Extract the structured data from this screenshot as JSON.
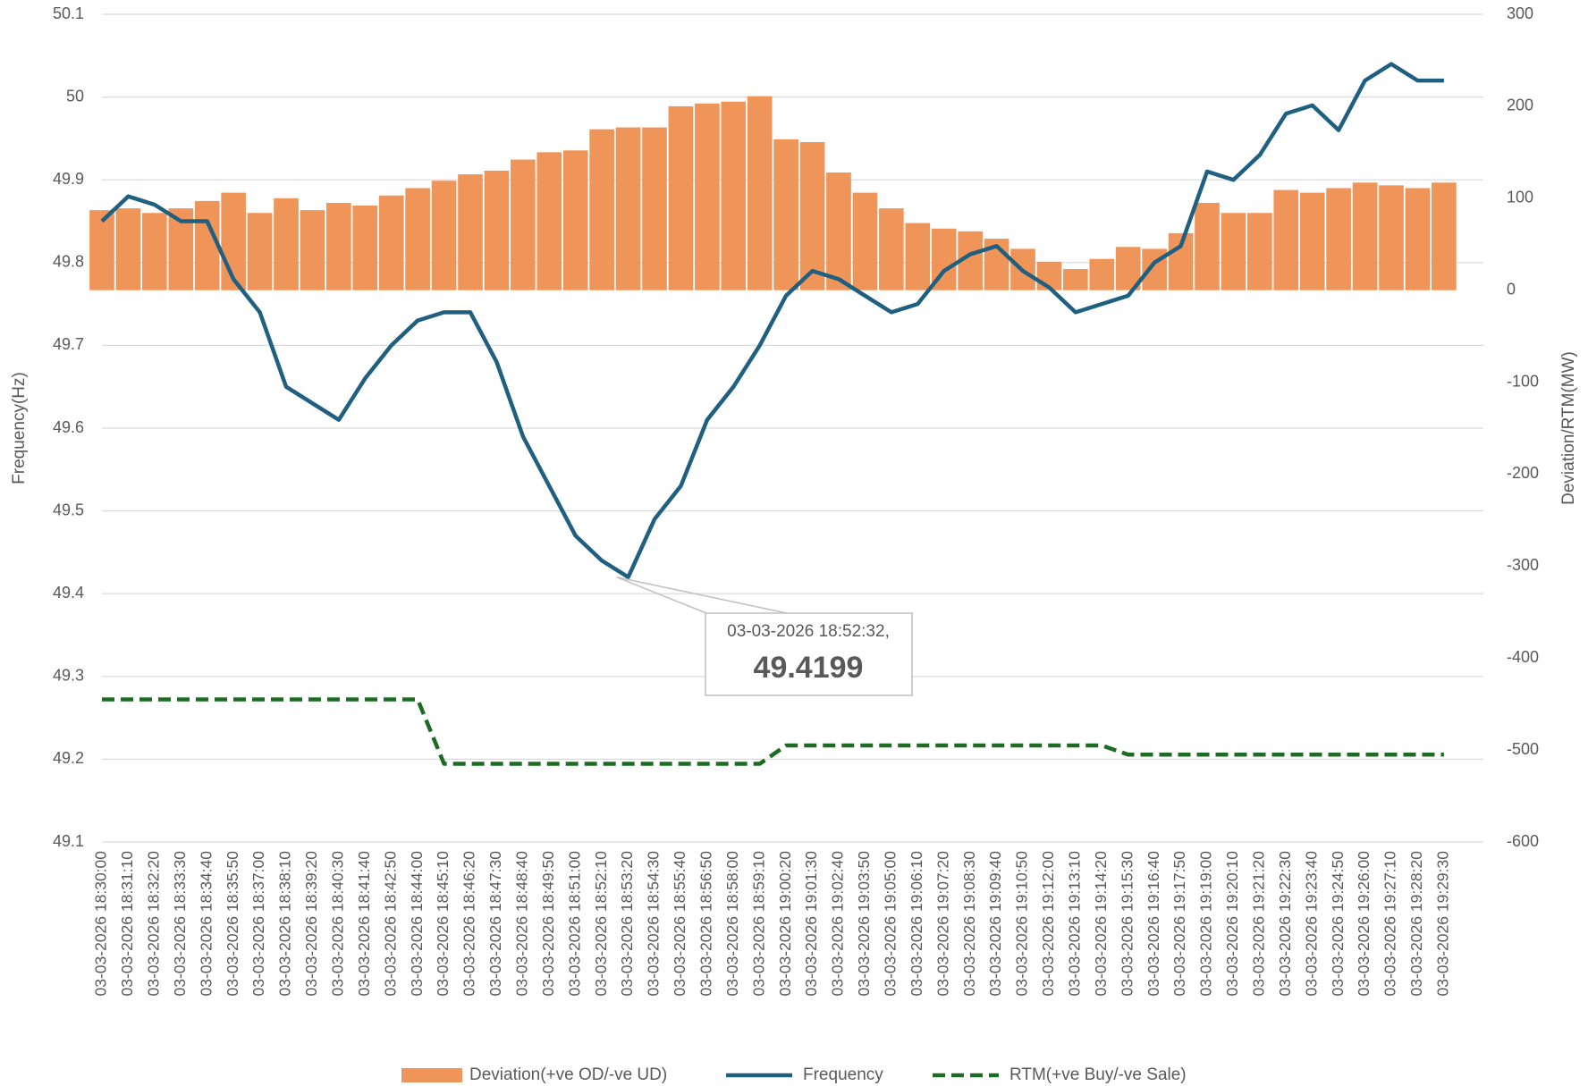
{
  "chart_data": {
    "type": "combo",
    "y_label": "Frequency(Hz)",
    "y2_label": "Deviation/RTM(MW)",
    "categories": [
      "03-03-2026 18:30:00",
      "03-03-2026 18:31:10",
      "03-03-2026 18:32:20",
      "03-03-2026 18:33:30",
      "03-03-2026 18:34:40",
      "03-03-2026 18:35:50",
      "03-03-2026 18:37:00",
      "03-03-2026 18:38:10",
      "03-03-2026 18:39:20",
      "03-03-2026 18:40:30",
      "03-03-2026 18:41:40",
      "03-03-2026 18:42:50",
      "03-03-2026 18:44:00",
      "03-03-2026 18:45:10",
      "03-03-2026 18:46:20",
      "03-03-2026 18:47:30",
      "03-03-2026 18:48:40",
      "03-03-2026 18:49:50",
      "03-03-2026 18:51:00",
      "03-03-2026 18:52:10",
      "03-03-2026 18:53:20",
      "03-03-2026 18:54:30",
      "03-03-2026 18:55:40",
      "03-03-2026 18:56:50",
      "03-03-2026 18:58:00",
      "03-03-2026 18:59:10",
      "03-03-2026 19:00:20",
      "03-03-2026 19:01:30",
      "03-03-2026 19:02:40",
      "03-03-2026 19:03:50",
      "03-03-2026 19:05:00",
      "03-03-2026 19:06:10",
      "03-03-2026 19:07:20",
      "03-03-2026 19:08:30",
      "03-03-2026 19:09:40",
      "03-03-2026 19:10:50",
      "03-03-2026 19:12:00",
      "03-03-2026 19:13:10",
      "03-03-2026 19:14:20",
      "03-03-2026 19:15:30",
      "03-03-2026 19:16:40",
      "03-03-2026 19:17:50",
      "03-03-2026 19:19:00",
      "03-03-2026 19:20:10",
      "03-03-2026 19:21:20",
      "03-03-2026 19:22:30",
      "03-03-2026 19:23:40",
      "03-03-2026 19:24:50",
      "03-03-2026 19:26:00",
      "03-03-2026 19:27:10",
      "03-03-2026 19:28:20",
      "03-03-2026 19:29:30"
    ],
    "series": [
      {
        "name": "Deviation(+ve OD/-ve UD)",
        "type": "bar",
        "axis": "y2",
        "color": "#f0955a",
        "values": [
          87,
          89,
          84,
          89,
          97,
          106,
          84,
          100,
          87,
          95,
          92,
          103,
          111,
          119,
          126,
          130,
          142,
          150,
          152,
          175,
          177,
          177,
          200,
          203,
          205,
          211,
          164,
          161,
          128,
          106,
          89,
          73,
          67,
          64,
          56,
          45,
          31,
          23,
          34,
          47,
          45,
          62,
          95,
          84,
          84,
          109,
          106,
          111,
          117,
          114,
          111,
          117
        ]
      },
      {
        "name": "Frequency",
        "type": "line",
        "axis": "y",
        "color": "#1f5f80",
        "values": [
          49.85,
          49.88,
          49.87,
          49.85,
          49.85,
          49.78,
          49.74,
          49.65,
          49.63,
          49.61,
          49.66,
          49.7,
          49.73,
          49.74,
          49.74,
          49.68,
          49.59,
          49.53,
          49.47,
          49.44,
          49.42,
          49.49,
          49.53,
          49.61,
          49.65,
          49.7,
          49.76,
          49.79,
          49.78,
          49.76,
          49.74,
          49.75,
          49.79,
          49.81,
          49.82,
          49.79,
          49.77,
          49.74,
          49.75,
          49.76,
          49.8,
          49.82,
          49.91,
          49.9,
          49.93,
          49.98,
          49.99,
          49.96,
          50.02,
          50.04,
          50.02,
          50.02
        ]
      },
      {
        "name": "RTM(+ve Buy/-ve Sale)",
        "type": "line",
        "axis": "y2",
        "color": "#1e6b24",
        "dashed": true,
        "values": [
          -445,
          -445,
          -445,
          -445,
          -445,
          -445,
          -445,
          -445,
          -445,
          -445,
          -445,
          -445,
          -445,
          -515,
          -515,
          -515,
          -515,
          -515,
          -515,
          -515,
          -515,
          -515,
          -515,
          -515,
          -515,
          -515,
          -495,
          -495,
          -495,
          -495,
          -495,
          -495,
          -495,
          -495,
          -495,
          -495,
          -495,
          -495,
          -495,
          -505,
          -505,
          -505,
          -505,
          -505,
          -505,
          -505,
          -505,
          -505,
          -505,
          -505,
          -505,
          -505
        ]
      }
    ],
    "ylim": [
      49.1,
      50.1
    ],
    "yticks": [
      49.1,
      49.2,
      49.3,
      49.4,
      49.5,
      49.6,
      49.7,
      49.8,
      49.9,
      50,
      50.1
    ],
    "y2lim": [
      -600,
      300
    ],
    "y2ticks": [
      -600,
      -500,
      -400,
      -300,
      -200,
      -100,
      0,
      100,
      200,
      300
    ],
    "grid": true,
    "legend": "bottom",
    "annotation": {
      "label": "03-03-2026 18:52:32,",
      "value": 49.4199
    }
  }
}
